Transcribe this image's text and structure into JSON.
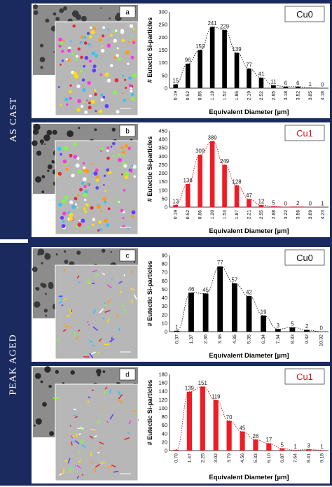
{
  "sections": [
    {
      "label": "AS CAST"
    },
    {
      "label": "PEAK AGED"
    }
  ],
  "chart_data": [
    {
      "type": "bar",
      "panel_letter": "a",
      "legend": "Cu0",
      "legend_color": "#111111",
      "bar_color": "#000000",
      "xlabel": "Equivalent Diameter [µm]",
      "ylabel": "# Eutectic Si-particles",
      "ylim": [
        0,
        300
      ],
      "yticks": [
        0,
        50,
        100,
        150,
        200,
        250,
        300
      ],
      "categories": [
        "0.19",
        "0.52",
        "0.85",
        "1.19",
        "1.52",
        "1.85",
        "2.19",
        "2.52",
        "2.85",
        "3.18",
        "3.52",
        "3.85",
        "4.18"
      ],
      "values": [
        15,
        96,
        150,
        241,
        229,
        139,
        77,
        41,
        11,
        6,
        6,
        1,
        0
      ],
      "labels": [
        "15",
        "96",
        "150",
        "241",
        "229",
        "139",
        "77",
        "41",
        "11",
        "6",
        "6",
        "1",
        "0"
      ]
    },
    {
      "type": "bar",
      "panel_letter": "b",
      "legend": "Cu1",
      "legend_color": "#d0141c",
      "bar_color": "#ee1c24",
      "xlabel": "Equivalent Diameter [µm]",
      "ylabel": "# Eutectic Si-particles",
      "ylim": [
        0,
        450
      ],
      "yticks": [
        0,
        50,
        100,
        150,
        200,
        250,
        300,
        350,
        400,
        450
      ],
      "categories": [
        "0.19",
        "0.52",
        "0.86",
        "1.20",
        "1.53",
        "1.87",
        "2.21",
        "2.55",
        "2.88",
        "3.22",
        "3.56",
        "3.89",
        "4.23"
      ],
      "values": [
        13,
        136,
        309,
        389,
        249,
        128,
        47,
        12,
        5,
        0,
        2,
        0,
        1
      ],
      "labels": [
        "13",
        "136",
        "309",
        "389",
        "249",
        "128",
        "47",
        "12",
        "5",
        "0",
        "2",
        "0",
        "1"
      ]
    },
    {
      "type": "bar",
      "panel_letter": "c",
      "legend": "Cu0",
      "legend_color": "#111111",
      "bar_color": "#000000",
      "xlabel": "Equivalent Diameter [µm]",
      "ylabel": "# Eutectic Si-particles",
      "ylim": [
        0,
        90
      ],
      "yticks": [
        0,
        10,
        20,
        30,
        40,
        50,
        60,
        70,
        80,
        90
      ],
      "categories": [
        "0.37",
        "1.37",
        "2.36",
        "3.36",
        "4.35",
        "5.35",
        "6.34",
        "7.34",
        "8.33",
        "9.32",
        "10.32"
      ],
      "values": [
        1,
        46,
        45,
        77,
        57,
        42,
        19,
        3,
        5,
        2,
        0
      ],
      "labels": [
        "1",
        "46",
        "45",
        "77",
        "57",
        "42",
        "19",
        "3",
        "5",
        "2",
        "0"
      ]
    },
    {
      "type": "bar",
      "panel_letter": "d",
      "legend": "Cu1",
      "legend_color": "#d0141c",
      "bar_color": "#ee1c24",
      "xlabel": "Equivalent Diameter [µm]",
      "ylabel": "# Eutectic Si-particles",
      "ylim": [
        0,
        180
      ],
      "yticks": [
        0,
        20,
        40,
        60,
        80,
        100,
        120,
        140,
        160,
        180
      ],
      "categories": [
        "0.70",
        "1.47",
        "2.25",
        "3.02",
        "3.79",
        "4.56",
        "5.33",
        "6.10",
        "6.87",
        "7.64",
        "8.41",
        "9.18"
      ],
      "values": [
        2,
        139,
        151,
        119,
        70,
        45,
        26,
        17,
        5,
        1,
        3,
        1
      ],
      "labels": [
        "",
        "139",
        "151",
        "119",
        "70",
        "45",
        "26",
        "17",
        "5",
        "1",
        "3",
        "1"
      ]
    }
  ]
}
